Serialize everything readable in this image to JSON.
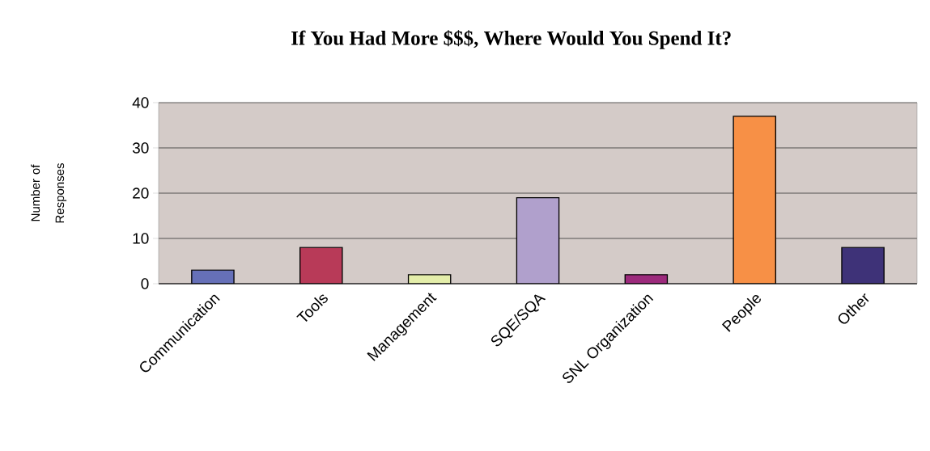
{
  "chart_data": {
    "type": "bar",
    "title": "If You Had More $$$, Where Would You Spend It?",
    "ylabel": "Number of Responses",
    "categories": [
      "Communication",
      "Tools",
      "Management",
      "SQE/SQA",
      "SNL Organization",
      "People",
      "Other"
    ],
    "values": [
      3,
      8,
      2,
      19,
      2,
      37,
      8
    ],
    "colors": [
      "#6670b8",
      "#b83a58",
      "#e4eeaa",
      "#b0a0cc",
      "#9c2a7c",
      "#f79046",
      "#3e3278"
    ],
    "ylim": [
      0,
      40
    ],
    "yticks": [
      0,
      10,
      20,
      30,
      40
    ],
    "grid": "y"
  }
}
